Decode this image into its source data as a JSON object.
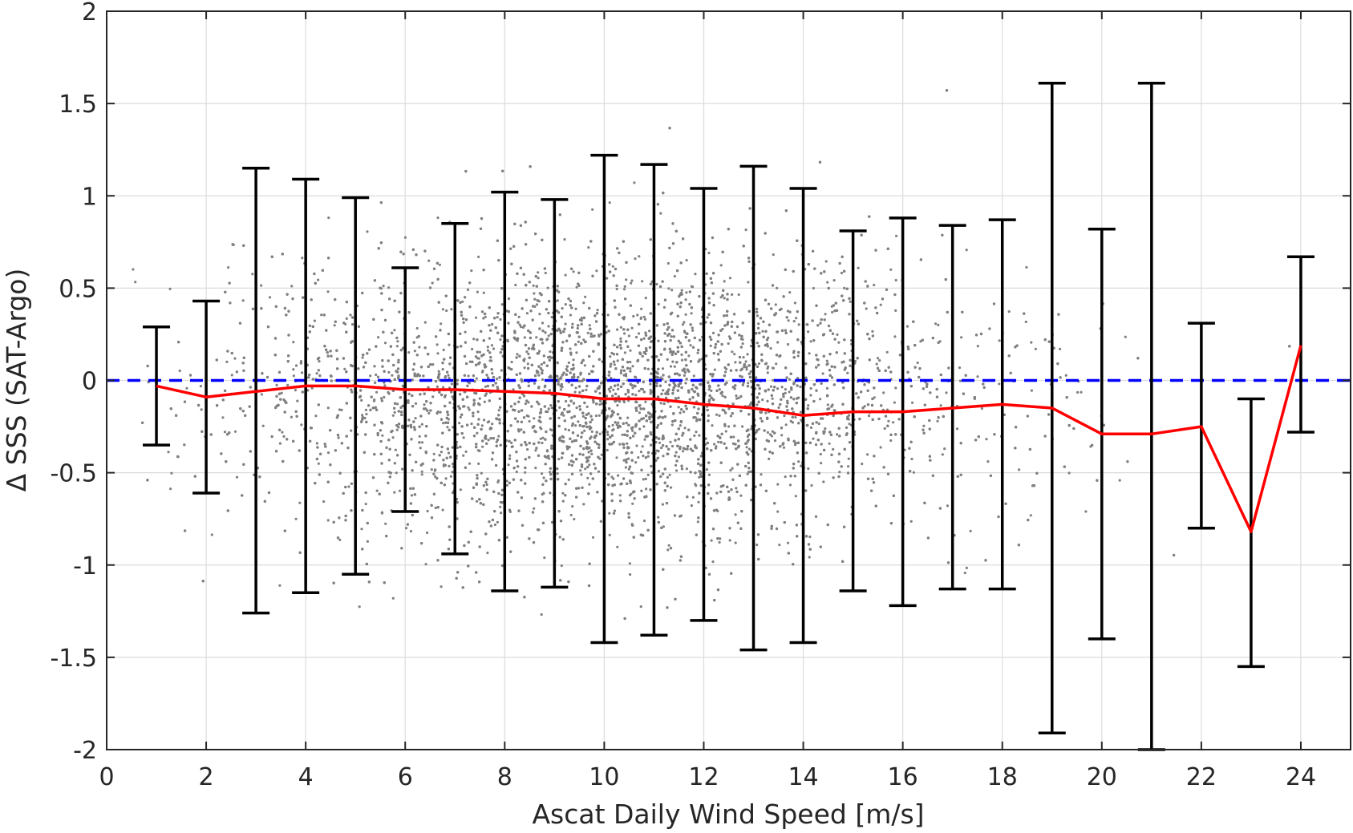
{
  "chart_data": {
    "type": "scatter",
    "xlabel": "Ascat Daily Wind Speed [m/s]",
    "ylabel": "Δ SSS (SAT-Argo)",
    "xlim": [
      0,
      25
    ],
    "ylim": [
      -2,
      2
    ],
    "x_ticks": [
      0,
      2,
      4,
      6,
      8,
      10,
      12,
      14,
      16,
      18,
      20,
      22,
      24
    ],
    "y_ticks": [
      -2,
      -1.5,
      -1,
      -0.5,
      0,
      0.5,
      1,
      1.5,
      2
    ],
    "x_tick_labels": [
      "0",
      "2",
      "4",
      "6",
      "8",
      "10",
      "12",
      "14",
      "16",
      "18",
      "20",
      "22",
      "24"
    ],
    "y_tick_labels": [
      "-2",
      "-1.5",
      "-1",
      "-0.5",
      "0",
      "0.5",
      "1",
      "1.5",
      "2"
    ],
    "grid": true,
    "colors": {
      "scatter": "#808080",
      "mean_line": "#ff0000",
      "zero_line": "#0000ff",
      "error_bars": "#000000",
      "grid": "#dcdcdc"
    },
    "reference_line": {
      "y": 0,
      "style": "dashed"
    },
    "scatter_summary": {
      "x_range": [
        0.5,
        24.5
      ],
      "density_peak_x": 10,
      "spread_sd": 0.38
    },
    "bins": [
      {
        "x": 1,
        "mean": -0.03,
        "upper": 0.29,
        "lower": -0.35
      },
      {
        "x": 2,
        "mean": -0.09,
        "upper": 0.43,
        "lower": -0.61
      },
      {
        "x": 3,
        "mean": -0.06,
        "upper": 1.15,
        "lower": -1.26
      },
      {
        "x": 4,
        "mean": -0.03,
        "upper": 1.09,
        "lower": -1.15
      },
      {
        "x": 5,
        "mean": -0.03,
        "upper": 0.99,
        "lower": -1.05
      },
      {
        "x": 6,
        "mean": -0.05,
        "upper": 0.61,
        "lower": -0.71
      },
      {
        "x": 7,
        "mean": -0.05,
        "upper": 0.85,
        "lower": -0.94
      },
      {
        "x": 8,
        "mean": -0.06,
        "upper": 1.02,
        "lower": -1.14
      },
      {
        "x": 9,
        "mean": -0.07,
        "upper": 0.98,
        "lower": -1.12
      },
      {
        "x": 10,
        "mean": -0.1,
        "upper": 1.22,
        "lower": -1.42
      },
      {
        "x": 11,
        "mean": -0.1,
        "upper": 1.17,
        "lower": -1.38
      },
      {
        "x": 12,
        "mean": -0.13,
        "upper": 1.04,
        "lower": -1.3
      },
      {
        "x": 13,
        "mean": -0.15,
        "upper": 1.16,
        "lower": -1.46
      },
      {
        "x": 14,
        "mean": -0.19,
        "upper": 1.04,
        "lower": -1.42
      },
      {
        "x": 15,
        "mean": -0.17,
        "upper": 0.81,
        "lower": -1.14
      },
      {
        "x": 16,
        "mean": -0.17,
        "upper": 0.88,
        "lower": -1.22
      },
      {
        "x": 17,
        "mean": -0.15,
        "upper": 0.84,
        "lower": -1.13
      },
      {
        "x": 18,
        "mean": -0.13,
        "upper": 0.87,
        "lower": -1.13
      },
      {
        "x": 19,
        "mean": -0.15,
        "upper": 1.61,
        "lower": -1.91
      },
      {
        "x": 20,
        "mean": -0.29,
        "upper": 0.82,
        "lower": -1.4
      },
      {
        "x": 21,
        "mean": -0.29,
        "upper": 1.61,
        "lower": -2.0
      },
      {
        "x": 22,
        "mean": -0.25,
        "upper": 0.31,
        "lower": -0.8
      },
      {
        "x": 23,
        "mean": -0.82,
        "upper": -0.1,
        "lower": -1.55
      },
      {
        "x": 24,
        "mean": 0.19,
        "upper": 0.67,
        "lower": -0.28
      }
    ]
  }
}
